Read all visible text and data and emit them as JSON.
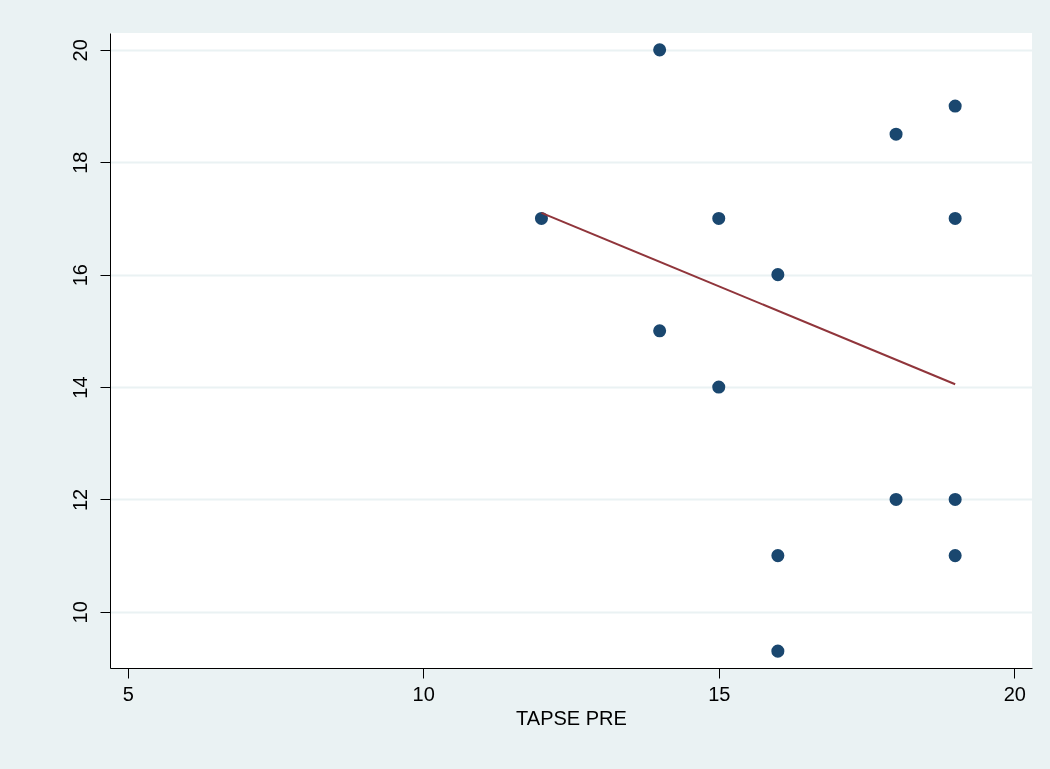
{
  "chart_data": {
    "type": "scatter",
    "xlabel": "TAPSE PRE",
    "xlim": [
      4.7,
      20.3
    ],
    "xticks": [
      5,
      10,
      15,
      20
    ],
    "ylim": [
      9,
      20.3
    ],
    "yticks": [
      10,
      12,
      14,
      16,
      18,
      20
    ],
    "grid": "y",
    "series": [
      {
        "marker": "circle",
        "color": "#1a476f",
        "x": [
          14,
          19,
          18,
          12,
          15,
          19,
          16,
          14,
          15,
          18,
          19,
          16,
          19,
          16
        ],
        "values": [
          20,
          19,
          18.5,
          17,
          17,
          17,
          16,
          15,
          14,
          12,
          12,
          11,
          11,
          9.3
        ]
      },
      {
        "type": "line",
        "color": "#90353b",
        "x": [
          12,
          19
        ],
        "values": [
          17.1,
          14.05
        ]
      }
    ]
  }
}
